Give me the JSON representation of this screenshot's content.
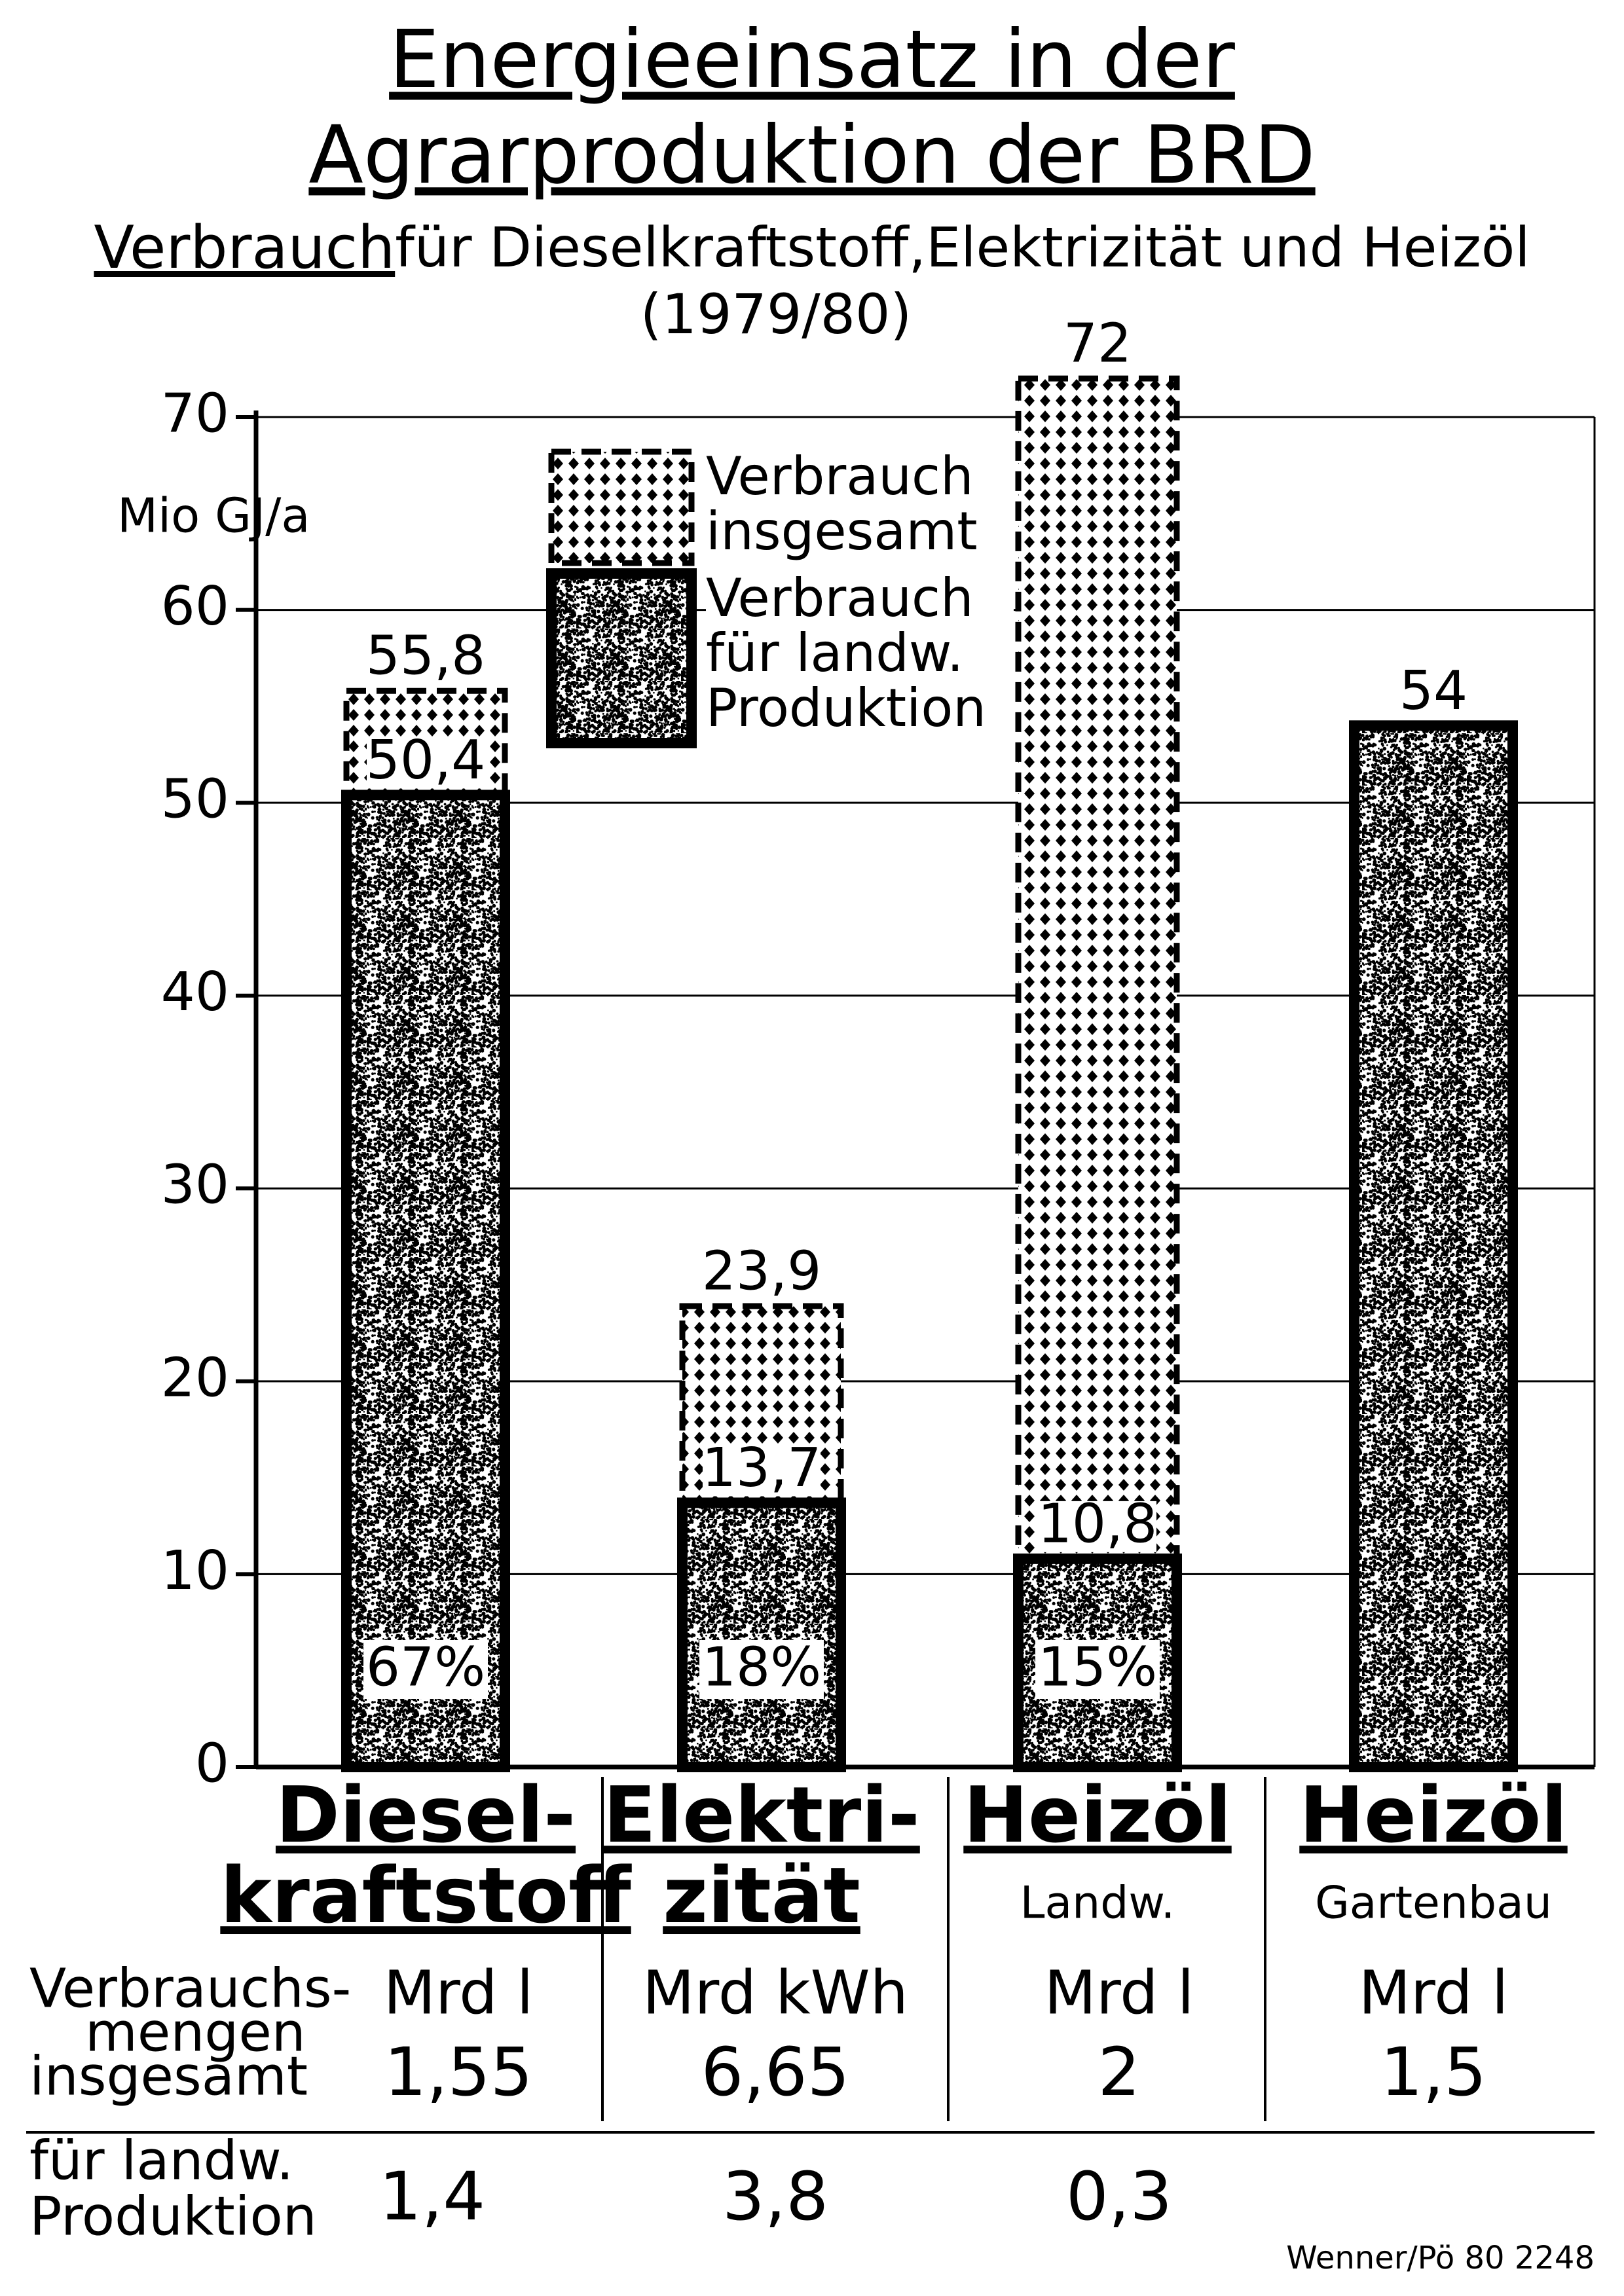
{
  "chart_data": {
    "type": "bar",
    "title": [
      "Energieeinsatz in der",
      "Agrarproduktion der BRD"
    ],
    "subtitle_lead": "Verbrauch",
    "subtitle": "für Dieselkraftstoff,Elektrizität und Heizöl",
    "period": "(1979/80)",
    "ylabel": "Mio GJ/a",
    "categories": [
      [
        "Diesel-",
        "kraftstoff"
      ],
      [
        "Elektri-",
        "zität"
      ],
      [
        "Heizöl"
      ],
      [
        "Heizöl"
      ]
    ],
    "subcategories": [
      null,
      null,
      "Landw.",
      "Gartenbau"
    ],
    "series": [
      {
        "name": "Verbrauch insgesamt",
        "color": "#000000",
        "pattern": "crosshatch",
        "outline": "dashed",
        "values": [
          55.8,
          23.9,
          72,
          null
        ],
        "value_labels": [
          "55,8",
          "23,9",
          "72",
          null
        ]
      },
      {
        "name": "Verbrauch für landw. Produktion",
        "color": "#000000",
        "pattern": "stipple",
        "outline": "solid",
        "values": [
          50.4,
          13.7,
          10.8,
          54
        ],
        "value_labels": [
          "50,4",
          "13,7",
          "10,8",
          "54"
        ]
      }
    ],
    "share_labels": [
      "67%",
      "18%",
      "15%",
      null
    ],
    "ylim": [
      0,
      70
    ],
    "yticks": [
      0,
      10,
      20,
      30,
      40,
      50,
      60,
      70
    ],
    "grid": true,
    "legend": "top-center"
  },
  "table": {
    "row_labels": [
      [
        "Verbrauchs-",
        "mengen",
        "insgesamt"
      ],
      [
        "für landw.",
        "Produktion"
      ]
    ],
    "units": [
      "Mrd l",
      "Mrd kWh",
      "Mrd l",
      "Mrd l"
    ],
    "rows": [
      [
        "1,55",
        "6,65",
        "2",
        "1,5"
      ],
      [
        "1,4",
        "3,8",
        "0,3"
      ]
    ]
  },
  "credit": "Wenner/Pö 80 2248"
}
